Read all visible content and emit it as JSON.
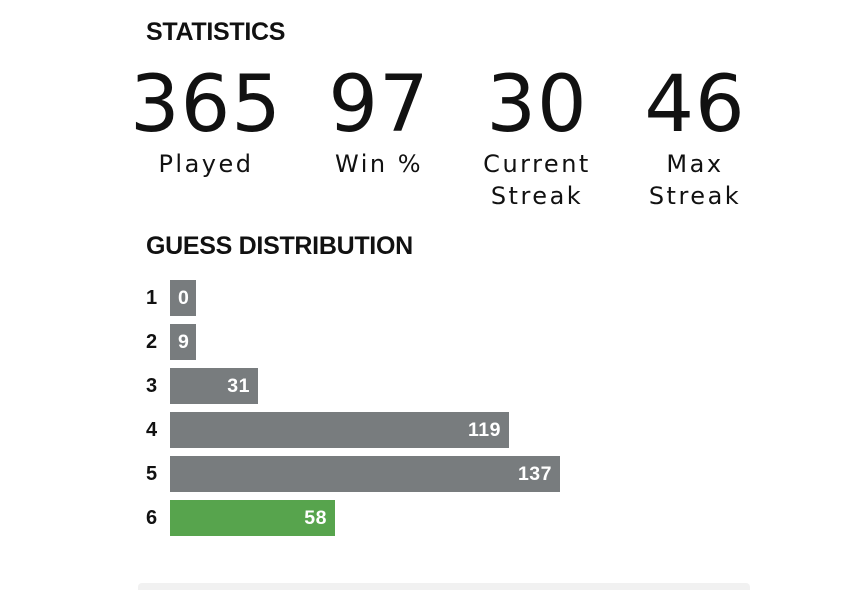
{
  "statistics": {
    "heading": "STATISTICS",
    "items": [
      {
        "value": "365",
        "label_line1": "Played",
        "label_line2": ""
      },
      {
        "value": "97",
        "label_line1": "Win %",
        "label_line2": ""
      },
      {
        "value": "30",
        "label_line1": "Current",
        "label_line2": "Streak"
      },
      {
        "value": "46",
        "label_line1": "Max",
        "label_line2": "Streak"
      }
    ]
  },
  "distribution": {
    "heading": "GUESS DISTRIBUTION",
    "rows": [
      {
        "guess": "1",
        "count": 0,
        "count_label": "0",
        "highlight": false
      },
      {
        "guess": "2",
        "count": 9,
        "count_label": "9",
        "highlight": false
      },
      {
        "guess": "3",
        "count": 31,
        "count_label": "31",
        "highlight": false
      },
      {
        "guess": "4",
        "count": 119,
        "count_label": "119",
        "highlight": false
      },
      {
        "guess": "5",
        "count": 137,
        "count_label": "137",
        "highlight": false
      },
      {
        "guess": "6",
        "count": 58,
        "count_label": "58",
        "highlight": true
      }
    ]
  },
  "colors": {
    "bar": "#787c7e",
    "highlight_bar": "#57a44d",
    "text": "#111111",
    "bar_text": "#ffffff"
  }
}
